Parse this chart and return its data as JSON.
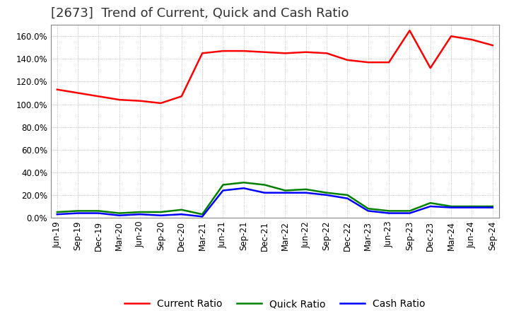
{
  "title": "[2673]  Trend of Current, Quick and Cash Ratio",
  "x_labels": [
    "Jun-19",
    "Sep-19",
    "Dec-19",
    "Mar-20",
    "Jun-20",
    "Sep-20",
    "Dec-20",
    "Mar-21",
    "Jun-21",
    "Sep-21",
    "Dec-21",
    "Mar-22",
    "Jun-22",
    "Sep-22",
    "Dec-22",
    "Mar-23",
    "Jun-23",
    "Sep-23",
    "Dec-23",
    "Mar-24",
    "Jun-24",
    "Sep-24"
  ],
  "current_ratio": [
    113.0,
    110.0,
    107.0,
    104.0,
    103.0,
    101.0,
    107.0,
    145.0,
    147.0,
    147.0,
    146.0,
    145.0,
    146.0,
    145.0,
    139.0,
    137.0,
    137.0,
    165.0,
    132.0,
    160.0,
    157.0,
    152.0
  ],
  "quick_ratio": [
    5.0,
    6.0,
    6.0,
    4.0,
    5.0,
    5.0,
    7.0,
    3.0,
    29.0,
    31.0,
    29.0,
    24.0,
    25.0,
    22.0,
    20.0,
    8.0,
    6.0,
    6.0,
    13.0,
    10.0,
    10.0,
    10.0
  ],
  "cash_ratio": [
    3.0,
    4.0,
    4.0,
    2.0,
    3.0,
    2.0,
    3.0,
    1.0,
    24.0,
    26.0,
    22.0,
    22.0,
    22.0,
    20.0,
    17.0,
    6.0,
    4.0,
    4.0,
    10.0,
    9.0,
    9.0,
    9.0
  ],
  "current_color": "#ff0000",
  "quick_color": "#008000",
  "cash_color": "#0000ff",
  "ylim": [
    0,
    170
  ],
  "y_ticks": [
    0,
    20,
    40,
    60,
    80,
    100,
    120,
    140,
    160
  ],
  "background_color": "#ffffff",
  "grid_color": "#b0b0b0",
  "title_fontsize": 13,
  "tick_fontsize": 8.5,
  "legend_fontsize": 10,
  "linewidth": 1.8
}
